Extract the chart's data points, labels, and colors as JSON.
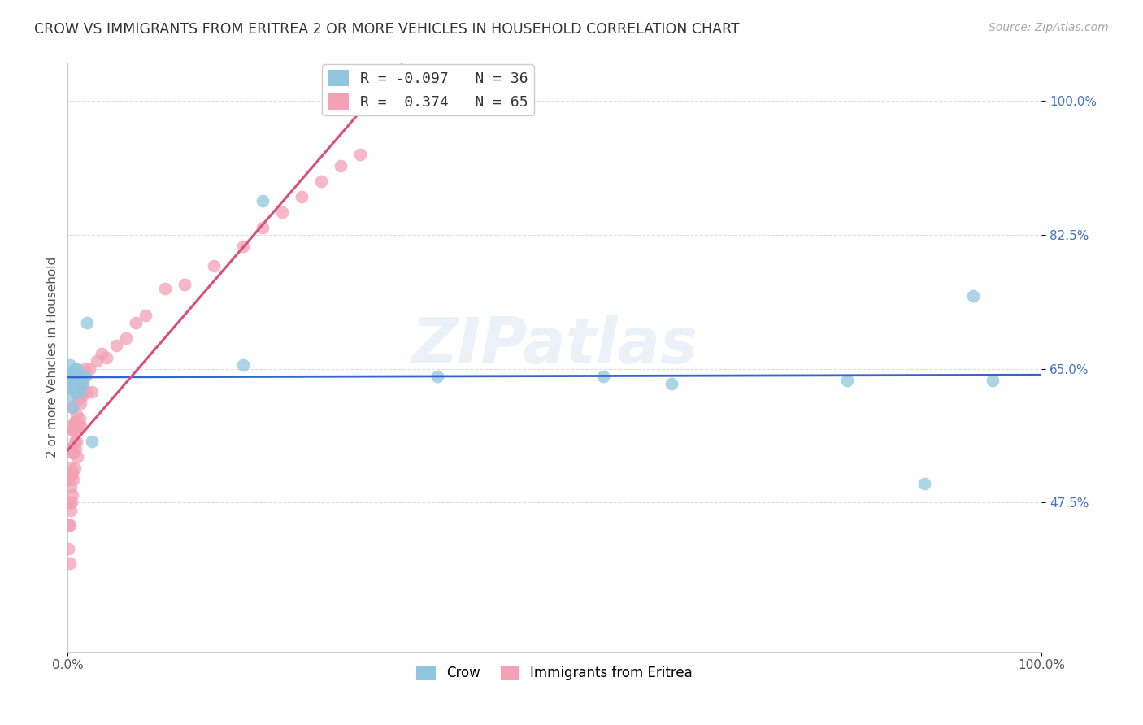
{
  "title": "CROW VS IMMIGRANTS FROM ERITREA 2 OR MORE VEHICLES IN HOUSEHOLD CORRELATION CHART",
  "source": "Source: ZipAtlas.com",
  "ylabel": "2 or more Vehicles in Household",
  "crow_R": -0.097,
  "crow_N": 36,
  "eritrea_R": 0.374,
  "eritrea_N": 65,
  "crow_color": "#92c5de",
  "eritrea_color": "#f4a0b5",
  "crow_line_color": "#3366cc",
  "eritrea_line_color": "#d94f7a",
  "eritrea_line_dashed_color": "#e8a0b8",
  "watermark": "ZIPatlas",
  "legend_entries": [
    "Crow",
    "Immigrants from Eritrea"
  ],
  "crow_x": [
    0.001,
    0.002,
    0.002,
    0.003,
    0.003,
    0.004,
    0.004,
    0.005,
    0.005,
    0.006,
    0.006,
    0.007,
    0.007,
    0.008,
    0.008,
    0.009,
    0.009,
    0.01,
    0.01,
    0.011,
    0.012,
    0.013,
    0.015,
    0.016,
    0.018,
    0.02,
    0.025,
    0.18,
    0.2,
    0.38,
    0.55,
    0.62,
    0.8,
    0.88,
    0.93,
    0.95
  ],
  "crow_y": [
    0.635,
    0.625,
    0.655,
    0.615,
    0.645,
    0.625,
    0.635,
    0.6,
    0.645,
    0.64,
    0.625,
    0.625,
    0.65,
    0.62,
    0.64,
    0.635,
    0.62,
    0.625,
    0.65,
    0.63,
    0.62,
    0.64,
    0.635,
    0.63,
    0.64,
    0.71,
    0.555,
    0.655,
    0.87,
    0.64,
    0.64,
    0.63,
    0.635,
    0.5,
    0.745,
    0.635
  ],
  "eritrea_x": [
    0.001,
    0.001,
    0.001,
    0.001,
    0.001,
    0.002,
    0.002,
    0.002,
    0.002,
    0.002,
    0.003,
    0.003,
    0.003,
    0.003,
    0.003,
    0.004,
    0.004,
    0.004,
    0.005,
    0.005,
    0.005,
    0.005,
    0.005,
    0.006,
    0.006,
    0.006,
    0.007,
    0.007,
    0.007,
    0.008,
    0.008,
    0.009,
    0.009,
    0.01,
    0.01,
    0.011,
    0.011,
    0.012,
    0.012,
    0.013,
    0.013,
    0.014,
    0.015,
    0.016,
    0.017,
    0.02,
    0.022,
    0.025,
    0.03,
    0.035,
    0.04,
    0.05,
    0.06,
    0.07,
    0.08,
    0.1,
    0.12,
    0.15,
    0.18,
    0.2,
    0.22,
    0.24,
    0.26,
    0.28,
    0.3
  ],
  "eritrea_y": [
    0.415,
    0.445,
    0.475,
    0.505,
    0.545,
    0.395,
    0.445,
    0.475,
    0.51,
    0.545,
    0.465,
    0.495,
    0.52,
    0.545,
    0.575,
    0.475,
    0.51,
    0.545,
    0.485,
    0.515,
    0.54,
    0.57,
    0.6,
    0.505,
    0.54,
    0.57,
    0.52,
    0.555,
    0.58,
    0.545,
    0.58,
    0.555,
    0.59,
    0.535,
    0.57,
    0.575,
    0.61,
    0.585,
    0.615,
    0.575,
    0.605,
    0.62,
    0.615,
    0.62,
    0.65,
    0.62,
    0.65,
    0.62,
    0.66,
    0.67,
    0.665,
    0.68,
    0.69,
    0.71,
    0.72,
    0.755,
    0.76,
    0.785,
    0.81,
    0.835,
    0.855,
    0.875,
    0.895,
    0.915,
    0.93
  ],
  "xlim": [
    0.0,
    1.0
  ],
  "ylim": [
    0.28,
    1.05
  ],
  "yticks": [
    0.475,
    0.65,
    0.825,
    1.0
  ],
  "ytick_labels": [
    "47.5%",
    "65.0%",
    "82.5%",
    "100.0%"
  ],
  "background_color": "#ffffff",
  "grid_color": "#dddddd",
  "tick_color": "#4472c4"
}
